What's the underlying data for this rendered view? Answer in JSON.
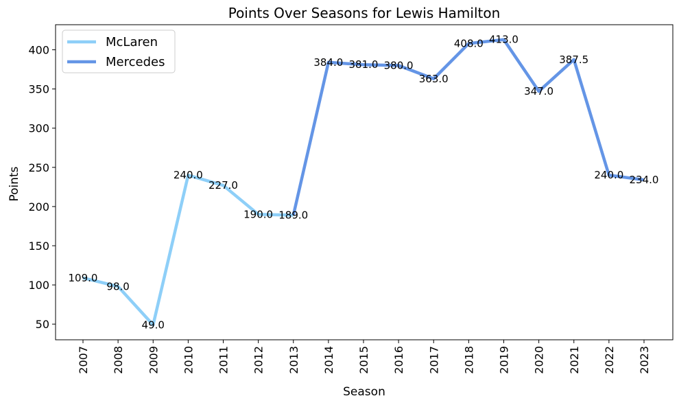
{
  "chart_data": {
    "type": "line",
    "title": "Points Over Seasons for Lewis Hamilton",
    "xlabel": "Season",
    "ylabel": "Points",
    "ylim": [
      30,
      432
    ],
    "yticks": [
      50,
      100,
      150,
      200,
      250,
      300,
      350,
      400
    ],
    "ytick_labels": [
      "50",
      "100",
      "150",
      "200",
      "250",
      "300",
      "350",
      "400"
    ],
    "categories": [
      "2007",
      "2008",
      "2009",
      "2010",
      "2011",
      "2012",
      "2013",
      "2014",
      "2015",
      "2016",
      "2017",
      "2018",
      "2019",
      "2020",
      "2021",
      "2022",
      "2023"
    ],
    "series": [
      {
        "name": "McLaren",
        "color": "#8ecff8",
        "x": [
          "2007",
          "2008",
          "2009",
          "2010",
          "2011",
          "2012",
          "2013"
        ],
        "values": [
          109.0,
          98.0,
          49.0,
          240.0,
          227.0,
          190.0,
          189.0
        ],
        "labels": [
          "109.0",
          "98.0",
          "49.0",
          "240.0",
          "227.0",
          "190.0",
          "189.0"
        ]
      },
      {
        "name": "Mercedes",
        "color": "#6495e6",
        "x": [
          "2013",
          "2014",
          "2015",
          "2016",
          "2017",
          "2018",
          "2019",
          "2020",
          "2021",
          "2022",
          "2023"
        ],
        "values": [
          189.0,
          384.0,
          381.0,
          380.0,
          363.0,
          408.0,
          413.0,
          347.0,
          387.5,
          240.0,
          234.0
        ],
        "labels": [
          "",
          "384.0",
          "381.0",
          "380.0",
          "363.0",
          "408.0",
          "413.0",
          "347.0",
          "387.5",
          "240.0",
          "234.0"
        ]
      }
    ],
    "grid": false,
    "legend_position": "top-left"
  }
}
